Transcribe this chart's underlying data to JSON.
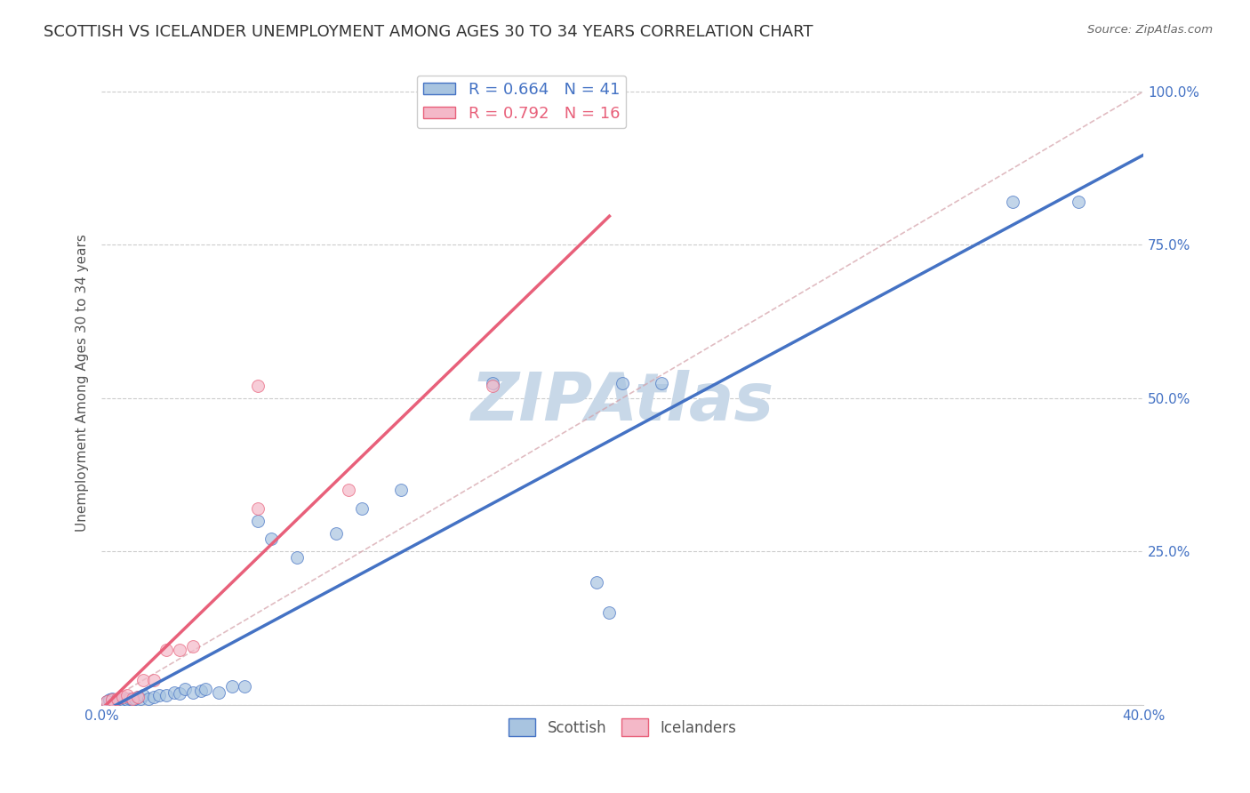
{
  "title": "SCOTTISH VS ICELANDER UNEMPLOYMENT AMONG AGES 30 TO 34 YEARS CORRELATION CHART",
  "source": "Source: ZipAtlas.com",
  "ylabel": "Unemployment Among Ages 30 to 34 years",
  "xlim": [
    0.0,
    0.4
  ],
  "ylim": [
    0.0,
    1.05
  ],
  "xticks": [
    0.0,
    0.05,
    0.1,
    0.15,
    0.2,
    0.25,
    0.3,
    0.35,
    0.4
  ],
  "yticks": [
    0.0,
    0.25,
    0.5,
    0.75,
    1.0
  ],
  "R_scottish": 0.664,
  "N_scottish": 41,
  "R_icelander": 0.792,
  "N_icelander": 16,
  "scottish_color": "#a8c4e0",
  "icelander_color": "#f4b8c8",
  "scottish_line_color": "#4472c4",
  "icelander_line_color": "#e8607a",
  "scatter_alpha": 0.7,
  "scatter_size": 100,
  "scottish_x": [
    0.002,
    0.003,
    0.004,
    0.005,
    0.006,
    0.007,
    0.008,
    0.009,
    0.01,
    0.011,
    0.012,
    0.013,
    0.014,
    0.015,
    0.016,
    0.018,
    0.02,
    0.022,
    0.025,
    0.028,
    0.03,
    0.032,
    0.035,
    0.038,
    0.04,
    0.045,
    0.05,
    0.055,
    0.06,
    0.065,
    0.075,
    0.09,
    0.1,
    0.115,
    0.15,
    0.19,
    0.195,
    0.2,
    0.215,
    0.35,
    0.375
  ],
  "scottish_y": [
    0.005,
    0.008,
    0.01,
    0.005,
    0.008,
    0.005,
    0.008,
    0.01,
    0.008,
    0.01,
    0.008,
    0.01,
    0.012,
    0.01,
    0.015,
    0.01,
    0.012,
    0.015,
    0.015,
    0.02,
    0.018,
    0.025,
    0.02,
    0.022,
    0.025,
    0.02,
    0.03,
    0.03,
    0.3,
    0.27,
    0.24,
    0.28,
    0.32,
    0.35,
    0.525,
    0.2,
    0.15,
    0.525,
    0.525,
    0.82,
    0.82
  ],
  "icelander_x": [
    0.002,
    0.004,
    0.006,
    0.008,
    0.01,
    0.012,
    0.014,
    0.016,
    0.02,
    0.025,
    0.03,
    0.035,
    0.06,
    0.06,
    0.095,
    0.15
  ],
  "icelander_y": [
    0.005,
    0.008,
    0.01,
    0.012,
    0.015,
    0.01,
    0.012,
    0.04,
    0.04,
    0.09,
    0.09,
    0.095,
    0.32,
    0.52,
    0.35,
    0.52
  ],
  "watermark": "ZIPAtlas",
  "watermark_color": "#c8d8e8",
  "background_color": "#ffffff",
  "grid_color": "#cccccc",
  "title_fontsize": 13,
  "axis_label_fontsize": 11,
  "tick_fontsize": 11,
  "legend_fontsize": 12
}
